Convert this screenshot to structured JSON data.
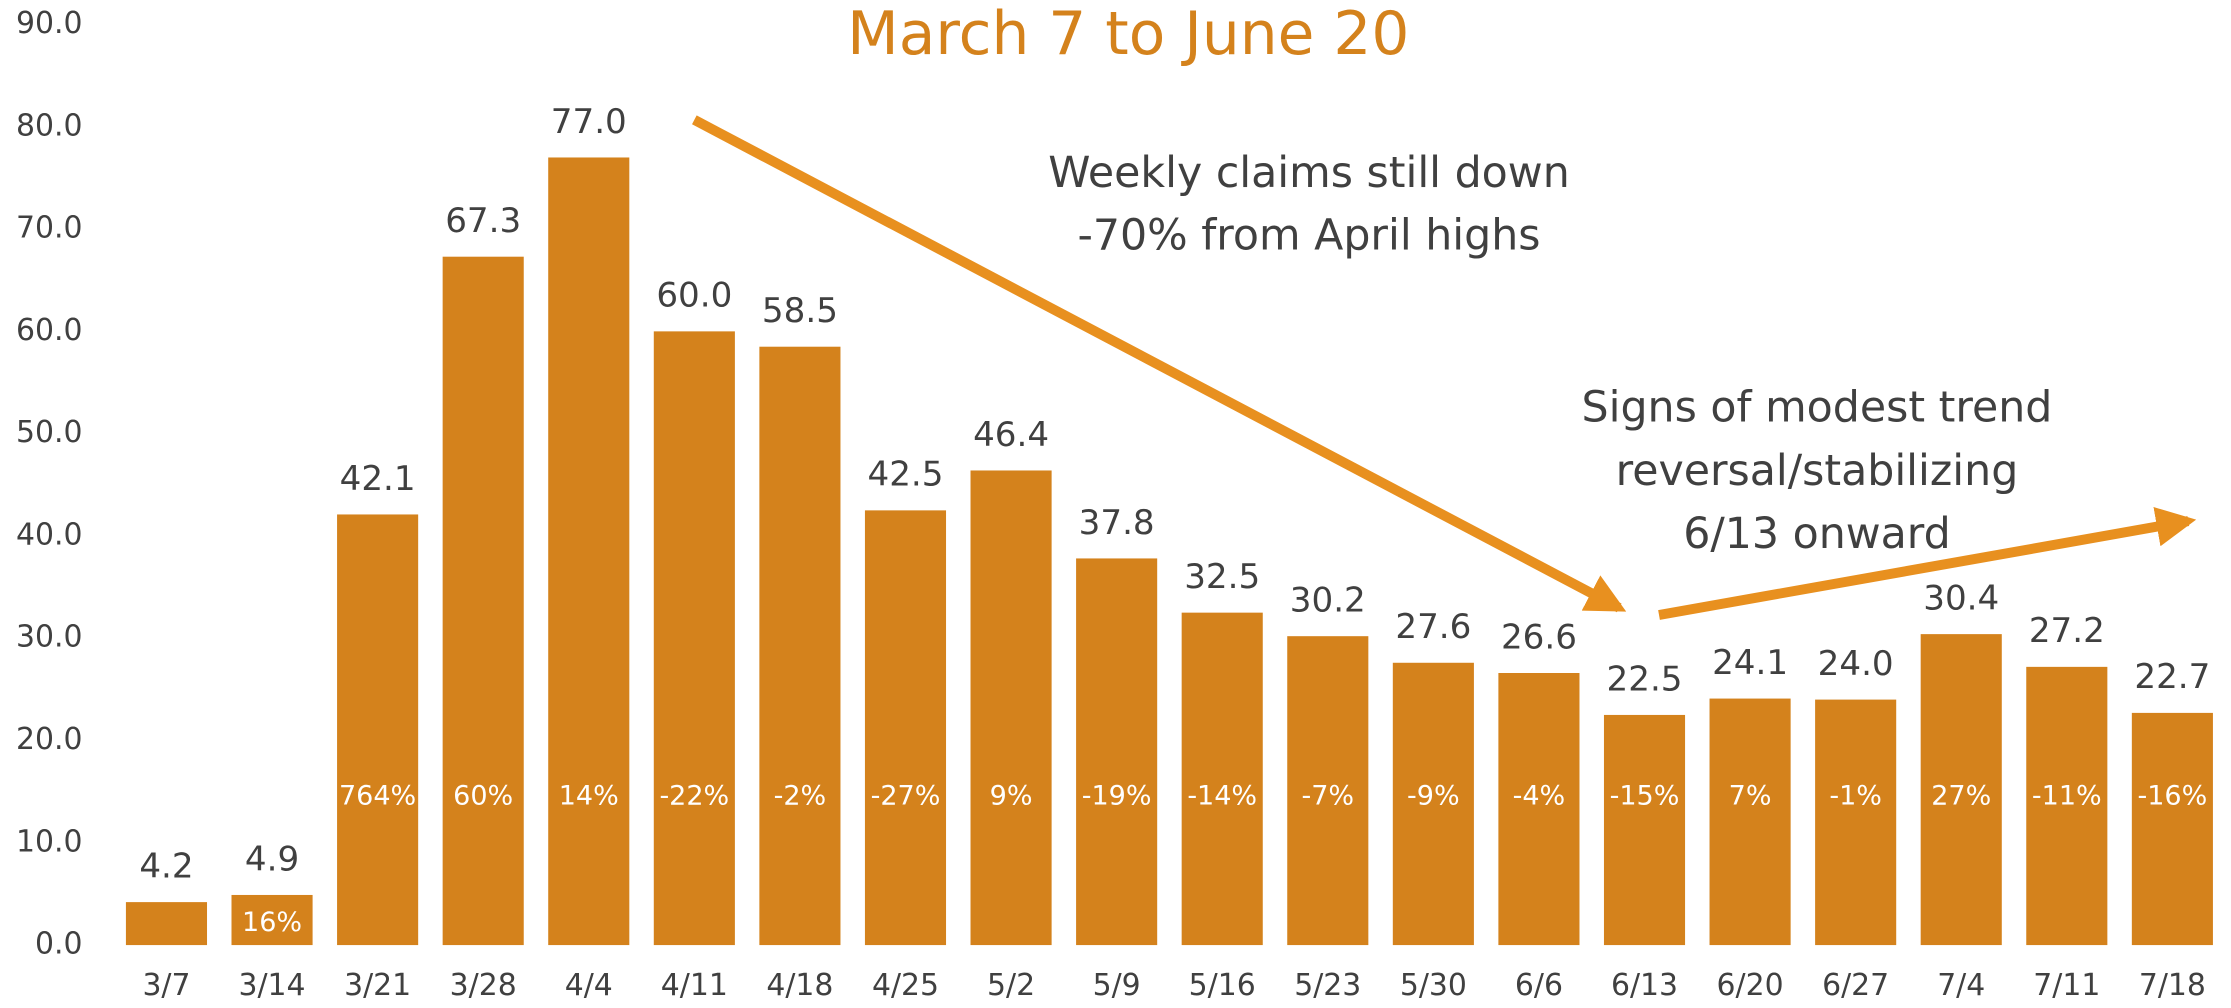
{
  "chart_data": {
    "type": "bar",
    "title": "March 7 to June 20",
    "annotations": [
      {
        "lines": [
          "Weekly claims still down",
          "-70% from April highs"
        ]
      },
      {
        "lines": [
          "Signs of modest trend",
          "reversal/stabilizing",
          "6/13 onward"
        ]
      }
    ],
    "categories": [
      "3/7",
      "3/14",
      "3/21",
      "3/28",
      "4/4",
      "4/11",
      "4/18",
      "4/25",
      "5/2",
      "5/9",
      "5/16",
      "5/23",
      "5/30",
      "6/6",
      "6/13",
      "6/20",
      "6/27",
      "7/4",
      "7/11",
      "7/18"
    ],
    "values": [
      4.2,
      4.9,
      42.1,
      67.3,
      77.0,
      60.0,
      58.5,
      42.5,
      46.4,
      37.8,
      32.5,
      30.2,
      27.6,
      26.6,
      22.5,
      24.1,
      24.0,
      30.4,
      27.2,
      22.7
    ],
    "value_labels": [
      "4.2",
      "4.9",
      "42.1",
      "67.3",
      "77.0",
      "60.0",
      "58.5",
      "42.5",
      "46.4",
      "37.8",
      "32.5",
      "30.2",
      "27.6",
      "26.6",
      "22.5",
      "24.1",
      "24.0",
      "30.4",
      "27.2",
      "22.7"
    ],
    "pct_change": [
      null,
      16,
      764,
      60,
      14,
      -22,
      -2,
      -27,
      9,
      -19,
      -14,
      -7,
      -9,
      -4,
      -15,
      7,
      -1,
      27,
      -11,
      -16
    ],
    "pct_change_labels": [
      null,
      "16%",
      "764%",
      "60%",
      "14%",
      "-22%",
      "-2%",
      "-27%",
      "9%",
      "-19%",
      "-14%",
      "-7%",
      "-9%",
      "-4%",
      "-15%",
      "7%",
      "-1%",
      "27%",
      "-11%",
      "-16%"
    ],
    "color": "#d4821c",
    "ylim": [
      0,
      90
    ],
    "yticks": [
      {
        "value": 0,
        "label": "0.0"
      },
      {
        "value": 10,
        "label": "10.0"
      },
      {
        "value": 20,
        "label": "20.0"
      },
      {
        "value": 30,
        "label": "30.0"
      },
      {
        "value": 40,
        "label": "40.0"
      },
      {
        "value": 50,
        "label": "50.0"
      },
      {
        "value": 60,
        "label": "60.0"
      },
      {
        "value": 70,
        "label": "70.0"
      },
      {
        "value": 80,
        "label": "80.0"
      },
      {
        "value": 90,
        "label": "90.0"
      }
    ],
    "grid": false
  }
}
